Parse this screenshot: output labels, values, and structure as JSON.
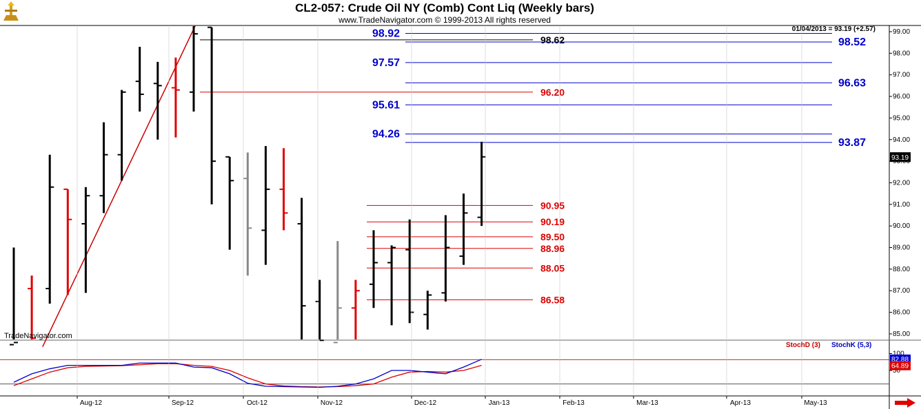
{
  "header": {
    "title": "CL2-057:  Crude Oil NY (Comb) Cont Liq  (Weekly bars)",
    "subtitle": "www.TradeNavigator.com © 1999-2013 All rights reserved",
    "last_info": "01/04/2013 = 93.19 (+2.57)",
    "watermark": "TradeNavigator.com",
    "logo_icon": "trade-navigator-logo-icon",
    "nav_icon": "red-right-arrow-icon"
  },
  "colors": {
    "up": "#000000",
    "down": "#e00000",
    "neutral": "#888888",
    "blue": "#0000cc",
    "red": "#dd0000"
  },
  "chart_data": {
    "type": "ohlc",
    "y_ticks": [
      "99.00",
      "98.00",
      "97.00",
      "96.00",
      "95.00",
      "94.00",
      "93.00",
      "92.00",
      "91.00",
      "90.00",
      "89.00",
      "88.00",
      "87.00",
      "86.00",
      "85.00"
    ],
    "ylim": [
      84.3,
      99.3
    ],
    "last_price": "93.19",
    "x_labels": [
      "Aug-12",
      "Sep-12",
      "Oct-12",
      "Nov-12",
      "Dec-12",
      "Jan-13",
      "Feb-13",
      "Mar-13",
      "Apr-13",
      "May-13"
    ],
    "bars": [
      {
        "x": 0,
        "o": 84.5,
        "h": 89.0,
        "l": 84.4,
        "c": 84.6,
        "col": "up"
      },
      {
        "x": 1,
        "o": 87.1,
        "h": 87.7,
        "l": 84.4,
        "c": 84.8,
        "col": "down"
      },
      {
        "x": 2,
        "o": 87.1,
        "h": 93.3,
        "l": 86.4,
        "c": 91.8,
        "col": "up"
      },
      {
        "x": 3,
        "o": 91.7,
        "h": 91.7,
        "l": 86.8,
        "c": 90.3,
        "col": "down"
      },
      {
        "x": 4,
        "o": 90.1,
        "h": 91.8,
        "l": 86.9,
        "c": 91.4,
        "col": "up"
      },
      {
        "x": 5,
        "o": 91.4,
        "h": 94.8,
        "l": 90.6,
        "c": 93.3,
        "col": "up"
      },
      {
        "x": 6,
        "o": 93.3,
        "h": 96.3,
        "l": 92.1,
        "c": 96.2,
        "col": "up"
      },
      {
        "x": 7,
        "o": 96.7,
        "h": 98.3,
        "l": 95.3,
        "c": 96.1,
        "col": "up"
      },
      {
        "x": 8,
        "o": 96.6,
        "h": 97.6,
        "l": 94.0,
        "c": 96.5,
        "col": "up"
      },
      {
        "x": 9,
        "o": 96.4,
        "h": 97.8,
        "l": 94.1,
        "c": 96.3,
        "col": "down"
      },
      {
        "x": 10,
        "o": 96.2,
        "h": 99.3,
        "l": 95.3,
        "c": 98.9,
        "col": "up"
      },
      {
        "x": 11,
        "o": 99.2,
        "h": 99.2,
        "l": 91.0,
        "c": 93.0,
        "col": "up"
      },
      {
        "x": 12,
        "o": 93.2,
        "h": 93.2,
        "l": 88.9,
        "c": 92.1,
        "col": "up"
      },
      {
        "x": 13,
        "o": 92.2,
        "h": 93.4,
        "l": 87.7,
        "c": 89.9,
        "col": "neutral"
      },
      {
        "x": 14,
        "o": 89.8,
        "h": 93.7,
        "l": 88.2,
        "c": 91.7,
        "col": "up"
      },
      {
        "x": 15,
        "o": 91.7,
        "h": 93.6,
        "l": 89.8,
        "c": 90.6,
        "col": "down"
      },
      {
        "x": 16,
        "o": 90.1,
        "h": 91.3,
        "l": 84.5,
        "c": 86.3,
        "col": "up"
      },
      {
        "x": 17,
        "o": 86.5,
        "h": 87.5,
        "l": 84.5,
        "c": 84.7,
        "col": "up"
      },
      {
        "x": 18,
        "o": 84.6,
        "h": 89.3,
        "l": 84.5,
        "c": 86.2,
        "col": "neutral"
      },
      {
        "x": 19,
        "o": 86.2,
        "h": 87.5,
        "l": 84.5,
        "c": 87.0,
        "col": "down"
      },
      {
        "x": 20,
        "o": 87.3,
        "h": 89.8,
        "l": 86.2,
        "c": 88.3,
        "col": "up"
      },
      {
        "x": 21,
        "o": 88.3,
        "h": 89.1,
        "l": 85.4,
        "c": 89.0,
        "col": "up"
      },
      {
        "x": 22,
        "o": 88.9,
        "h": 90.3,
        "l": 85.5,
        "c": 86.0,
        "col": "up"
      },
      {
        "x": 23,
        "o": 85.9,
        "h": 87.0,
        "l": 85.2,
        "c": 86.8,
        "col": "up"
      },
      {
        "x": 24,
        "o": 86.9,
        "h": 90.5,
        "l": 86.5,
        "c": 89.0,
        "col": "up"
      },
      {
        "x": 25,
        "o": 88.6,
        "h": 91.5,
        "l": 88.2,
        "c": 90.6,
        "col": "up"
      },
      {
        "x": 26,
        "o": 90.4,
        "h": 93.9,
        "l": 90.0,
        "c": 93.2,
        "col": "up"
      }
    ],
    "levels_right": [
      {
        "value": 98.92,
        "label": "98.92",
        "side": "left",
        "color": "blue"
      },
      {
        "value": 98.62,
        "label": "98.62",
        "side": "inner",
        "color": "black"
      },
      {
        "value": 98.52,
        "label": "98.52",
        "side": "right",
        "color": "blue"
      },
      {
        "value": 97.57,
        "label": "97.57",
        "side": "left",
        "color": "blue"
      },
      {
        "value": 96.63,
        "label": "96.63",
        "side": "right",
        "color": "blue"
      },
      {
        "value": 96.2,
        "label": "96.20",
        "side": "inner",
        "color": "red"
      },
      {
        "value": 95.61,
        "label": "95.61",
        "side": "left",
        "color": "blue"
      },
      {
        "value": 94.26,
        "label": "94.26",
        "side": "left",
        "color": "blue"
      },
      {
        "value": 93.87,
        "label": "93.87",
        "side": "right",
        "color": "blue"
      }
    ],
    "levels_lower": [
      {
        "value": 90.95,
        "label": "90.95"
      },
      {
        "value": 90.19,
        "label": "90.19"
      },
      {
        "value": 89.5,
        "label": "89.50"
      },
      {
        "value": 88.96,
        "label": "88.96"
      },
      {
        "value": 88.05,
        "label": "88.05"
      },
      {
        "value": 86.58,
        "label": "86.58"
      }
    ],
    "trendline": {
      "from": [
        1.6,
        84.4
      ],
      "to": [
        10.1,
        99.3
      ]
    },
    "stoch": {
      "label_d": "StochD (3)",
      "label_k": "StochK (5,3)",
      "y_ticks": [
        "100",
        "50"
      ],
      "value_k": "82.88",
      "value_d": "64.89",
      "k": [
        15,
        40,
        55,
        65,
        65,
        65,
        65,
        72,
        72,
        72,
        60,
        58,
        40,
        12,
        3,
        2,
        1,
        0,
        3,
        10,
        25,
        50,
        50,
        45,
        40,
        60,
        83
      ],
      "d": [
        5,
        25,
        45,
        58,
        62,
        63,
        64,
        67,
        70,
        70,
        65,
        62,
        50,
        28,
        10,
        4,
        2,
        1,
        2,
        5,
        10,
        30,
        45,
        47,
        45,
        50,
        65
      ]
    }
  }
}
